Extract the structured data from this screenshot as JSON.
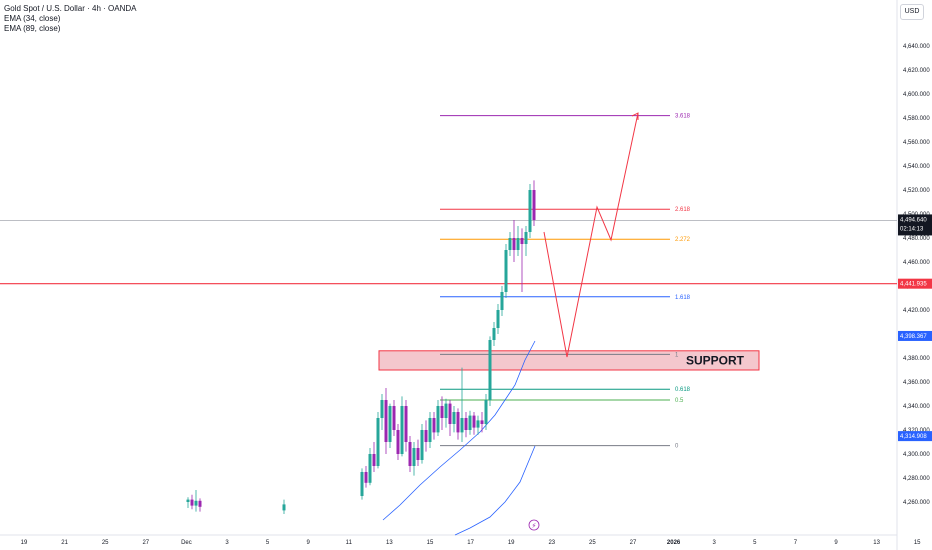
{
  "legend": {
    "symbol": "Gold Spot / U.S. Dollar · 4h · OANDA",
    "ema1": "EMA (34, close)",
    "ema2": "EMA (89, close)"
  },
  "currency": "USD",
  "price_axis": {
    "ticks": [
      "4,640.000",
      "4,620.000",
      "4,600.000",
      "4,580.000",
      "4,560.000",
      "4,540.000",
      "4,520.000",
      "4,500.000",
      "4,480.000",
      "4,460.000",
      "4,440.000",
      "4,420.000",
      "4,400.000",
      "4,380.000",
      "4,360.000",
      "4,340.000",
      "4,320.000",
      "4,300.000",
      "4,280.000",
      "4,260.000"
    ],
    "tick_values": [
      4640,
      4620,
      4600,
      4580,
      4560,
      4540,
      4520,
      4500,
      4480,
      4460,
      4440,
      4420,
      4400,
      4380,
      4360,
      4340,
      4320,
      4300,
      4280,
      4260
    ]
  },
  "time_axis": {
    "labels": [
      "19",
      "21",
      "25",
      "27",
      "Dec",
      "3",
      "5",
      "9",
      "11",
      "13",
      "15",
      "17",
      "19",
      "23",
      "25",
      "27",
      "2026",
      "3",
      "5",
      "7",
      "9",
      "13",
      "15",
      "17"
    ]
  },
  "price_tags": {
    "current_price": "4,494.640",
    "countdown": "02:14:13",
    "red_level": "4,441.935",
    "ema34": "4,398.367",
    "ema89": "4,314.908"
  },
  "fib_levels": [
    {
      "label": "3.618",
      "price": 4582.0,
      "color": "#9c27b0"
    },
    {
      "label": "2.618",
      "price": 4504.0,
      "color": "#f23645"
    },
    {
      "label": "2.272",
      "price": 4479.0,
      "color": "#ff9800"
    },
    {
      "label": "1.618",
      "price": 4431.0,
      "color": "#2962ff"
    },
    {
      "label": "1",
      "price": 4383.0,
      "color": "#787b86"
    },
    {
      "label": "0.618",
      "price": 4354.0,
      "color": "#089981"
    },
    {
      "label": "0.5",
      "price": 4345.0,
      "color": "#4caf50"
    },
    {
      "label": "0",
      "price": 4307.0,
      "color": "#787b86"
    }
  ],
  "support_label": "SUPPORT",
  "colors": {
    "up": "#26a69a",
    "down": "#9c27b0",
    "ema": "#2962ff",
    "projection": "#f23645",
    "support_fill": "#f4c7cd"
  }
}
